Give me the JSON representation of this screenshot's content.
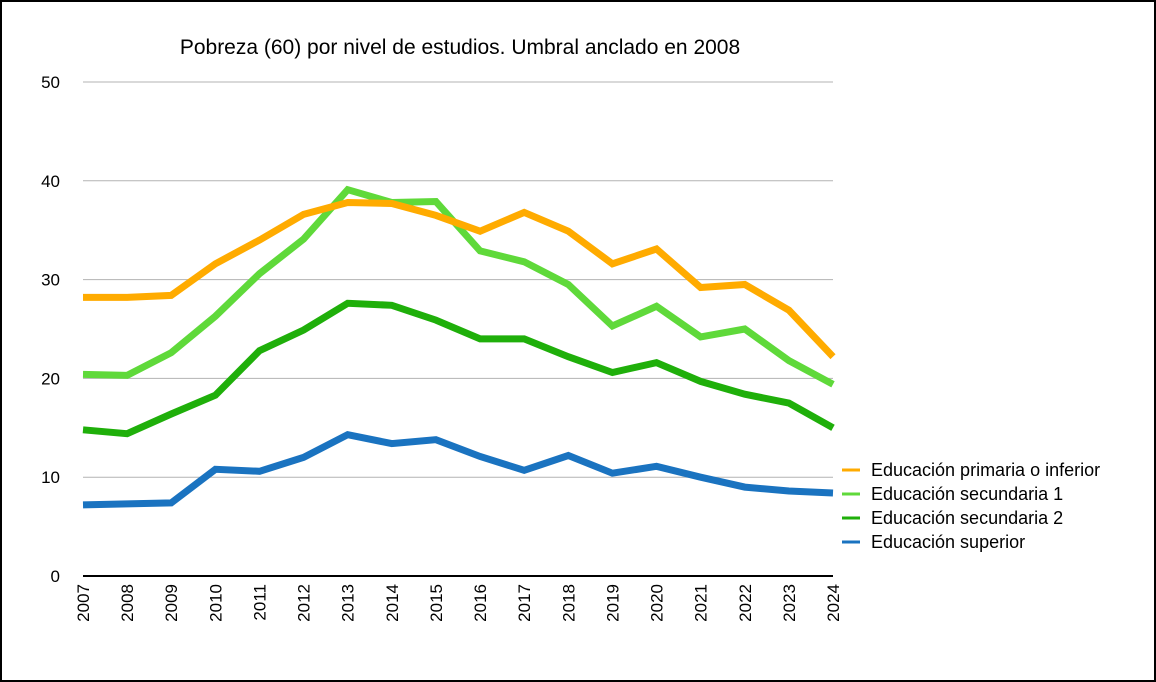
{
  "chart_data": {
    "type": "line",
    "title": "Pobreza (60) por nivel de estudios. Umbral anclado en 2008",
    "xlabel": "",
    "ylabel": "",
    "ylim": [
      0,
      50
    ],
    "yticks": [
      0,
      10,
      20,
      30,
      40,
      50
    ],
    "ytick_labels": [
      "0",
      "10",
      "20",
      "30",
      "40",
      "50"
    ],
    "grid": true,
    "legend_position": "right",
    "categories": [
      "2007",
      "2008",
      "2009",
      "2010",
      "2011",
      "2012",
      "2013",
      "2014",
      "2015",
      "2016",
      "2017",
      "2018",
      "2019",
      "2020",
      "2021",
      "2022",
      "2023",
      "2024"
    ],
    "series": [
      {
        "name": "Educación primaria o inferior",
        "color": "#FFAB00",
        "values": [
          28.2,
          28.2,
          28.4,
          31.6,
          34.0,
          36.6,
          37.8,
          37.7,
          36.5,
          34.9,
          36.8,
          34.9,
          31.6,
          33.1,
          29.2,
          29.5,
          26.9,
          22.2
        ]
      },
      {
        "name": "Educación secundaria 1",
        "color": "#5FD93A",
        "values": [
          20.4,
          20.3,
          22.6,
          26.3,
          30.6,
          34.1,
          39.1,
          37.8,
          37.9,
          32.9,
          31.8,
          29.5,
          25.3,
          27.3,
          24.2,
          25.0,
          21.8,
          19.4
        ]
      },
      {
        "name": "Educación secundaria 2",
        "color": "#1FAF0A",
        "values": [
          14.8,
          14.4,
          16.4,
          18.3,
          22.8,
          24.9,
          27.6,
          27.4,
          25.9,
          24.0,
          24.0,
          22.2,
          20.6,
          21.6,
          19.7,
          18.4,
          17.5,
          15.0
        ]
      },
      {
        "name": "Educación superior",
        "color": "#1A73C0",
        "values": [
          7.2,
          7.3,
          7.4,
          10.8,
          10.6,
          12.0,
          14.3,
          13.4,
          13.8,
          12.1,
          10.7,
          12.2,
          10.4,
          11.1,
          10.0,
          9.0,
          8.6,
          8.4
        ]
      }
    ]
  }
}
